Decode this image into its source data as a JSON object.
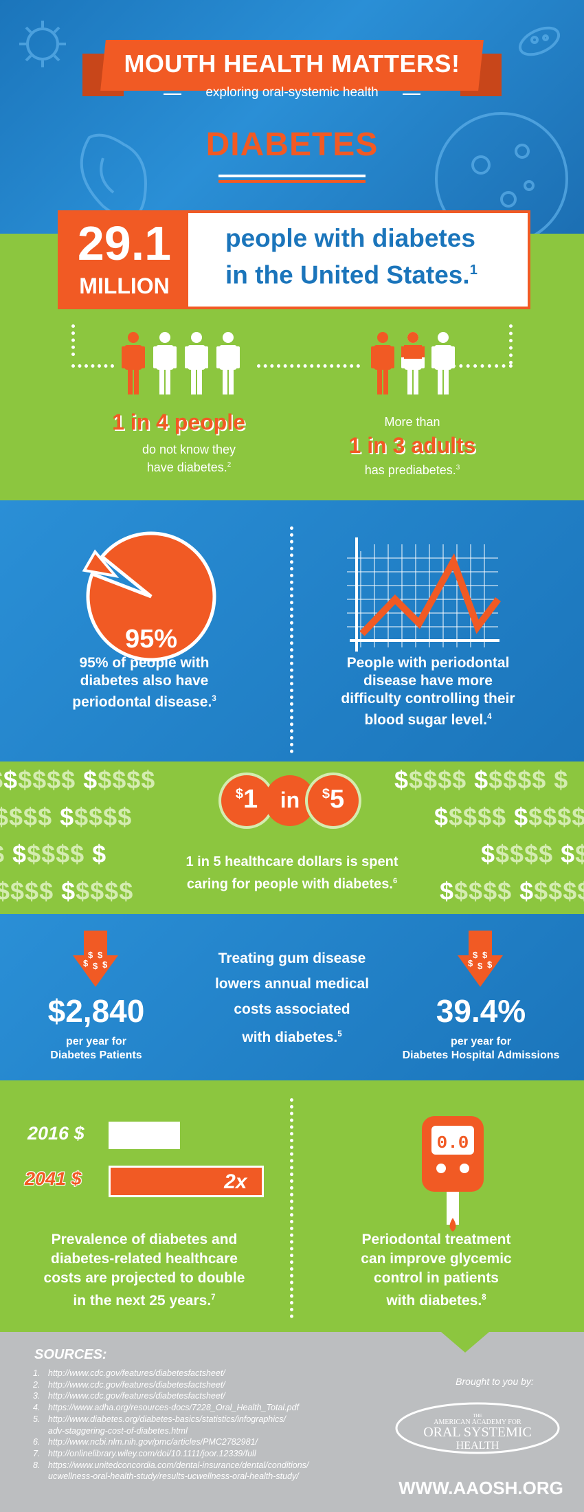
{
  "header": {
    "title": "MOUTH HEALTH MATTERS!",
    "subtitle": "exploring oral-systemic health",
    "topic": "DIABETES"
  },
  "stat": {
    "number": "29.1",
    "unit": "MILLION",
    "line1": "people with diabetes",
    "line2": "in the United States.",
    "ref": "1"
  },
  "people": {
    "left_big": "1 in 4 people",
    "left_line1": "do not know they",
    "left_line2": "have diabetes.",
    "left_ref": "2",
    "right_pre": "More than",
    "right_big": "1 in 3 adults",
    "right_line": "has prediabetes.",
    "right_ref": "3"
  },
  "periodontal": {
    "pie_label": "95%",
    "pie_percent": 95,
    "left_line1": "95% of people with",
    "left_line2": "diabetes also have",
    "left_line3": "periodontal disease.",
    "left_ref": "3",
    "right_line1": "People with periodontal",
    "right_line2": "disease have more",
    "right_line3": "difficulty controlling their",
    "right_line4": "blood sugar level.",
    "right_ref": "4"
  },
  "dollars": {
    "one": "1",
    "in": "in",
    "five": "5",
    "line1": "1 in 5 healthcare dollars is spent",
    "line2": "caring for people with diabetes.",
    "ref": "6"
  },
  "costs": {
    "left_value": "$2,840",
    "left_line1": "per year for",
    "left_line2": "Diabetes Patients",
    "center_line1": "Treating gum disease",
    "center_line2": "lowers annual medical",
    "center_line3": "costs associated",
    "center_line4": "with diabetes.",
    "center_ref": "5",
    "right_value": "39.4%",
    "right_line1": "per year for",
    "right_line2": "Diabetes Hospital Admissions"
  },
  "projection": {
    "label_2016": "2016 $",
    "label_2041": "2041 $",
    "multiplier": "2x",
    "value_2016": 1,
    "value_2041": 2,
    "left_line1": "Prevalence of diabetes and",
    "left_line2": "diabetes-related healthcare",
    "left_line3": "costs are projected to double",
    "left_line4": "in the next 25 years.",
    "left_ref": "7",
    "meter_display": "0.0",
    "right_line1": "Periodontal treatment",
    "right_line2": "can improve glycemic",
    "right_line3": "control in patients",
    "right_line4": "with diabetes.",
    "right_ref": "8"
  },
  "sources": {
    "title": "SOURCES:",
    "items": [
      {
        "n": "1.",
        "lines": [
          "http://www.cdc.gov/features/diabetesfactsheet/"
        ]
      },
      {
        "n": "2.",
        "lines": [
          "http://www.cdc.gov/features/diabetesfactsheet/"
        ]
      },
      {
        "n": "3.",
        "lines": [
          "http://www.cdc.gov/features/diabetesfactsheet/"
        ]
      },
      {
        "n": "4.",
        "lines": [
          "https://www.adha.org/resources-docs/7228_Oral_Health_Total.pdf"
        ]
      },
      {
        "n": "5.",
        "lines": [
          "http://www.diabetes.org/diabetes-basics/statistics/infographics/",
          "adv-staggering-cost-of-diabetes.html"
        ]
      },
      {
        "n": "6.",
        "lines": [
          "http://www.ncbi.nlm.nih.gov/pmc/articles/PMC2782981/"
        ]
      },
      {
        "n": "7.",
        "lines": [
          "http://onlinelibrary.wiley.com/doi/10.1111/joor.12339/full"
        ]
      },
      {
        "n": "8.",
        "lines": [
          "https://www.unitedconcordia.com/dental-insurance/dental/conditions/",
          "ucwellness-oral-health-study/results-ucwellness-oral-health-study/"
        ]
      }
    ]
  },
  "footer": {
    "brought": "Brought to you by:",
    "logo_the": "THE",
    "logo_line1": "AMERICAN ACADEMY FOR",
    "logo_line2": "ORAL SYSTEMIC",
    "logo_line3": "HEALTH",
    "website": "WWW.AAOSH.ORG"
  },
  "colors": {
    "orange": "#f15a24",
    "green": "#8cc63f",
    "blue": "#1b75bb",
    "gray": "#bcbec0"
  }
}
